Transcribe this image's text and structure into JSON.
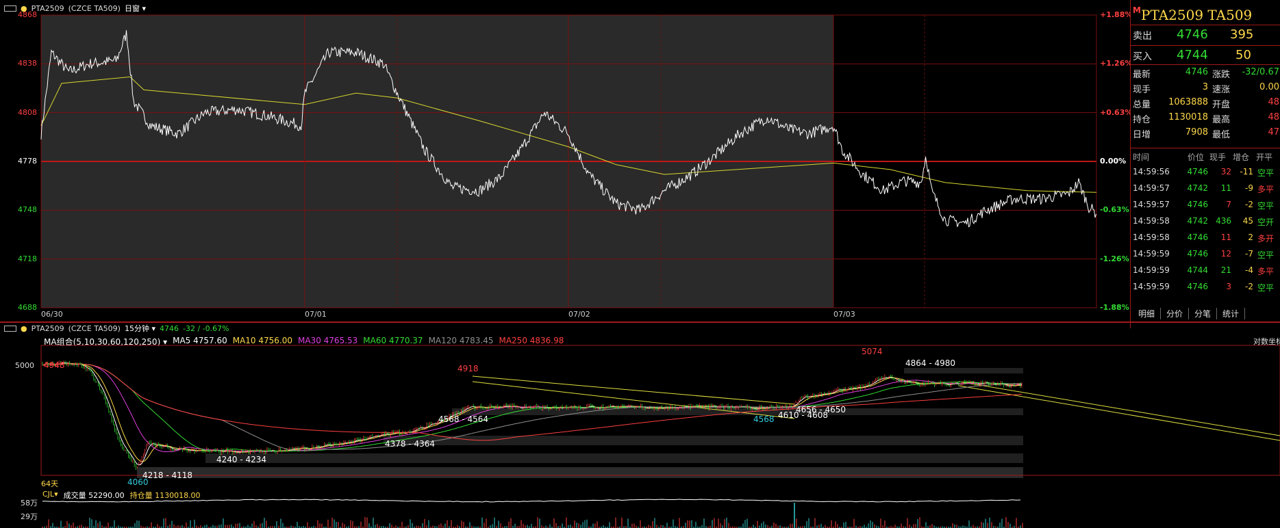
{
  "colors": {
    "up": "#ff4040",
    "down": "#33dd33",
    "axis": "#c01818",
    "price": "#ffffff",
    "avg": "#e0e040",
    "yellow": "#ffd84a"
  },
  "top_header": {
    "symbol": "PTA2509",
    "exchange": "(CZCE TA509)",
    "period": "日窗"
  },
  "intraday": {
    "y_ticks": [
      "4868",
      "4838",
      "4808",
      "4778",
      "4748",
      "4718",
      "4688"
    ],
    "pct_ticks": [
      "+1.88%",
      "+1.26%",
      "+0.63%",
      "0.00%",
      "-0.63%",
      "-1.26%",
      "-1.88%"
    ],
    "dates": [
      "06/30",
      "07/01",
      "07/02",
      "07/03"
    ]
  },
  "quote": {
    "title_prefix": "M",
    "title": "PTA2509  TA509",
    "ask_label": "卖出",
    "ask_price": "4746",
    "ask_vol": "395",
    "bid_label": "买入",
    "bid_price": "4744",
    "bid_vol": "50",
    "rows": [
      {
        "l1": "最新",
        "v1": "4746",
        "l2": "涨跌",
        "v2": "-32/0.67"
      },
      {
        "l1": "现手",
        "v1": "3",
        "l2": "速涨",
        "v2": "0.00"
      },
      {
        "l1": "总量",
        "v1": "1063888",
        "l2": "开盘",
        "v2": "48"
      },
      {
        "l1": "持仓",
        "v1": "1130018",
        "l2": "最高",
        "v2": "48"
      },
      {
        "l1": "日增",
        "v1": "7908",
        "l2": "最低",
        "v2": "47"
      }
    ],
    "tick_headers": [
      "时间",
      "价位",
      "现手",
      "增仓",
      "开平"
    ],
    "ticks": [
      {
        "t": "14:59:56",
        "p": "4746",
        "v": "32",
        "c": "-11",
        "k": "空平"
      },
      {
        "t": "14:59:57",
        "p": "4742",
        "v": "11",
        "c": "-9",
        "k": "多平"
      },
      {
        "t": "14:59:57",
        "p": "4746",
        "v": "7",
        "c": "-2",
        "k": "空平"
      },
      {
        "t": "14:59:58",
        "p": "4742",
        "v": "436",
        "c": "45",
        "k": "空开"
      },
      {
        "t": "14:59:58",
        "p": "4746",
        "v": "11",
        "c": "2",
        "k": "多开"
      },
      {
        "t": "14:59:59",
        "p": "4746",
        "v": "12",
        "c": "-7",
        "k": "空平"
      },
      {
        "t": "14:59:59",
        "p": "4744",
        "v": "21",
        "c": "-4",
        "k": "多平"
      },
      {
        "t": "14:59:59",
        "p": "4746",
        "v": "3",
        "c": "-2",
        "k": "空平"
      }
    ],
    "tabs": [
      "明细",
      "分价",
      "分笔",
      "统计"
    ]
  },
  "kline_header": {
    "symbol": "PTA2509",
    "exchange": "(CZCE TA509)",
    "period": "15分钟",
    "last": "4746",
    "change": "-32 / -0.67%"
  },
  "ma_legend": [
    {
      "text": "MA组合(5,10,30,60,120,250)",
      "color": "#ffffff"
    },
    {
      "text": "MA5 4757.60",
      "color": "#ffffff"
    },
    {
      "text": "MA10 4756.00",
      "color": "#ffd84a"
    },
    {
      "text": "MA30 4765.53",
      "color": "#e040e0"
    },
    {
      "text": "MA60 4770.37",
      "color": "#33dd33"
    },
    {
      "text": "MA120 4783.45",
      "color": "#909090"
    },
    {
      "text": "MA250 4836.98",
      "color": "#ff4040"
    }
  ],
  "kline": {
    "log_label": "对数坐标",
    "y5000": "5000",
    "days": "64天",
    "marks": {
      "m4948": "4948",
      "m4918": "4918",
      "m5074": "5074",
      "m4060": "4060",
      "m4568": "4568"
    },
    "zones": {
      "z1": "4864 - 4980",
      "z2": "4568 - 4564",
      "z3": "4656 - 4650",
      "z4": "4610 - 4608",
      "z5": "4378 - 4364",
      "z6": "4240 - 4234",
      "z7": "4218 - 4118"
    }
  },
  "volume": {
    "indicator": "CJL",
    "vol": "成交量 52290.00",
    "oi": "持仓量 1130018.00",
    "t1": "58万",
    "t2": "29万"
  }
}
